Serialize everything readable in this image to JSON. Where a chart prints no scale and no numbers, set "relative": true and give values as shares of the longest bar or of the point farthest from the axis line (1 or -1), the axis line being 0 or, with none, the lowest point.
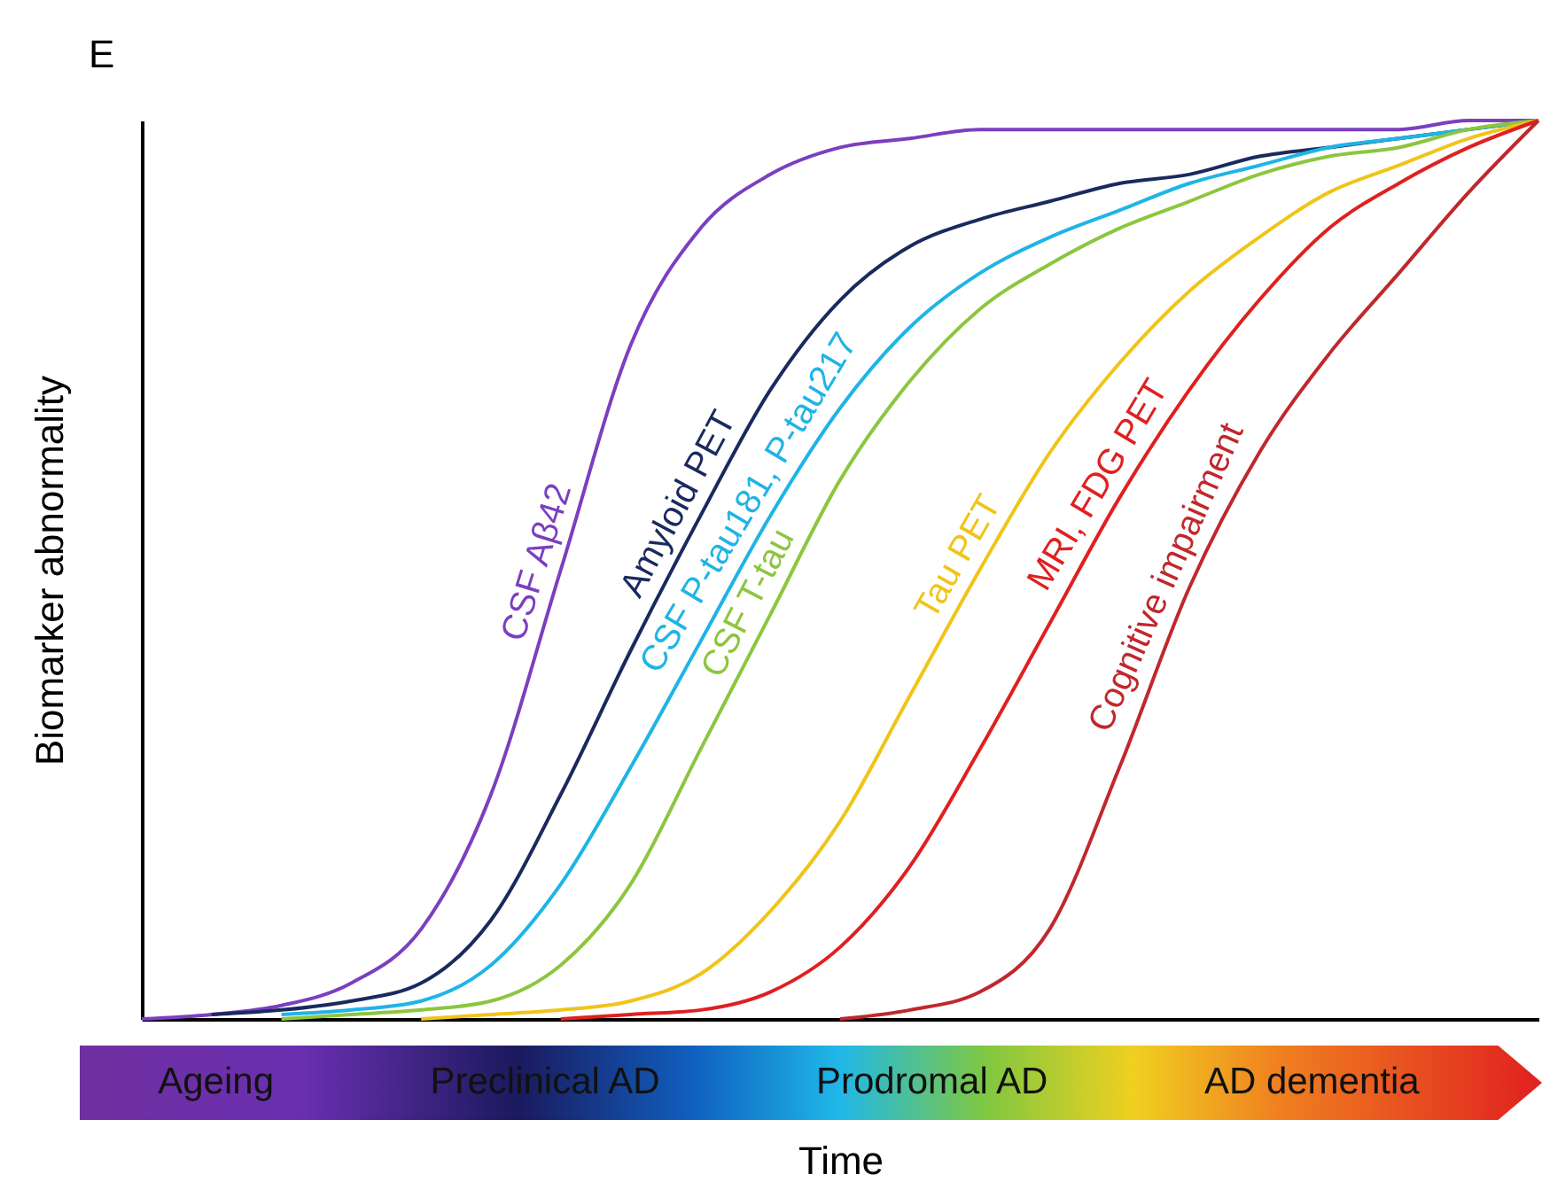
{
  "chart_data": {
    "type": "line",
    "relative": true,
    "title": "E",
    "xlabel": "Time",
    "ylabel": "Biomarker abnormality",
    "categories": [
      null,
      null,
      null,
      null,
      null,
      null,
      null,
      null,
      null,
      null,
      null,
      null,
      null,
      null,
      null,
      null,
      null,
      null,
      null,
      null,
      null
    ],
    "series": [
      {
        "name": "CSF Aβ42",
        "color": "#7b3fbf",
        "values": [
          0,
          0.005,
          0.015,
          0.04,
          0.1,
          0.25,
          0.5,
          0.75,
          0.88,
          0.94,
          0.97,
          0.98,
          0.99,
          0.99,
          0.99,
          0.99,
          0.99,
          0.99,
          0.99,
          1,
          1
        ]
      },
      {
        "name": "Amyloid PET",
        "color": "#1a2a5e",
        "values": [
          null,
          0.005,
          0.01,
          0.02,
          0.04,
          0.11,
          0.25,
          0.41,
          0.56,
          0.7,
          0.8,
          0.86,
          0.89,
          0.91,
          0.93,
          0.94,
          0.96,
          0.97,
          0.98,
          0.99,
          1
        ]
      },
      {
        "name": "CSF P-tau181, P-tau217",
        "color": "#1fb4e6",
        "values": [
          null,
          null,
          0.005,
          0.01,
          0.02,
          0.06,
          0.15,
          0.28,
          0.42,
          0.56,
          0.68,
          0.77,
          0.83,
          0.87,
          0.9,
          0.93,
          0.95,
          0.97,
          0.98,
          0.99,
          1
        ]
      },
      {
        "name": "CSF T-tau",
        "color": "#8cc63f",
        "values": [
          null,
          null,
          0,
          0.005,
          0.01,
          0.02,
          0.06,
          0.15,
          0.3,
          0.45,
          0.6,
          0.71,
          0.79,
          0.84,
          0.88,
          0.91,
          0.94,
          0.96,
          0.97,
          0.99,
          1
        ]
      },
      {
        "name": "Tau PET",
        "color": "#f0c419",
        "values": [
          null,
          null,
          null,
          null,
          0,
          0.005,
          0.01,
          0.02,
          0.05,
          0.12,
          0.22,
          0.36,
          0.5,
          0.63,
          0.73,
          0.81,
          0.87,
          0.92,
          0.95,
          0.98,
          1
        ]
      },
      {
        "name": "MRI, FDG PET",
        "color": "#e02020",
        "values": [
          null,
          null,
          null,
          null,
          null,
          null,
          0,
          0.005,
          0.01,
          0.03,
          0.08,
          0.17,
          0.3,
          0.44,
          0.58,
          0.7,
          0.8,
          0.88,
          0.93,
          0.97,
          1
        ]
      },
      {
        "name": "Cognitive impairment",
        "color": "#c0282d",
        "values": [
          null,
          null,
          null,
          null,
          null,
          null,
          null,
          null,
          null,
          null,
          0,
          0.01,
          0.03,
          0.1,
          0.28,
          0.48,
          0.63,
          0.74,
          0.83,
          0.92,
          1
        ]
      }
    ],
    "annotations": [
      "Ageing",
      "Preclinical AD",
      "Prodromal AD",
      "AD dementia"
    ]
  }
}
